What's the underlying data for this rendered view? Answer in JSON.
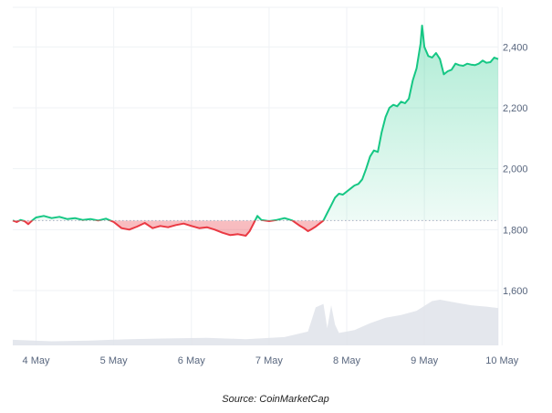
{
  "chart_data": {
    "type": "area",
    "baseline": 1830,
    "ylim": [
      1420,
      2530
    ],
    "x_ticks": [
      "4 May",
      "5 May",
      "6 May",
      "7 May",
      "8 May",
      "9 May",
      "10 May"
    ],
    "y_ticks": [
      1600,
      1800,
      2000,
      2200,
      2400
    ],
    "y_tick_labels": [
      "1,600",
      "1,800",
      "2,000",
      "2,200",
      "2,400"
    ],
    "grid": true,
    "series": [
      {
        "points": [
          [
            0,
            1830
          ],
          [
            0.05,
            1825
          ],
          [
            0.1,
            1832
          ],
          [
            0.15,
            1828
          ],
          [
            0.2,
            1818
          ],
          [
            0.25,
            1830
          ],
          [
            0.3,
            1840
          ],
          [
            0.4,
            1845
          ],
          [
            0.5,
            1838
          ],
          [
            0.6,
            1842
          ],
          [
            0.7,
            1835
          ],
          [
            0.8,
            1838
          ],
          [
            0.9,
            1832
          ],
          [
            1.0,
            1835
          ],
          [
            1.1,
            1830
          ],
          [
            1.2,
            1836
          ],
          [
            1.3,
            1825
          ],
          [
            1.4,
            1805
          ],
          [
            1.5,
            1800
          ],
          [
            1.6,
            1810
          ],
          [
            1.7,
            1822
          ],
          [
            1.8,
            1805
          ],
          [
            1.9,
            1812
          ],
          [
            2.0,
            1808
          ],
          [
            2.1,
            1815
          ],
          [
            2.2,
            1820
          ],
          [
            2.3,
            1812
          ],
          [
            2.4,
            1805
          ],
          [
            2.5,
            1808
          ],
          [
            2.6,
            1800
          ],
          [
            2.7,
            1790
          ],
          [
            2.8,
            1782
          ],
          [
            2.9,
            1785
          ],
          [
            3.0,
            1780
          ],
          [
            3.05,
            1795
          ],
          [
            3.1,
            1820
          ],
          [
            3.15,
            1845
          ],
          [
            3.2,
            1832
          ],
          [
            3.3,
            1828
          ],
          [
            3.4,
            1832
          ],
          [
            3.5,
            1838
          ],
          [
            3.6,
            1830
          ],
          [
            3.7,
            1812
          ],
          [
            3.75,
            1805
          ],
          [
            3.8,
            1795
          ],
          [
            3.85,
            1802
          ],
          [
            3.9,
            1810
          ],
          [
            3.95,
            1820
          ],
          [
            4.0,
            1830
          ],
          [
            4.05,
            1855
          ],
          [
            4.1,
            1880
          ],
          [
            4.15,
            1905
          ],
          [
            4.2,
            1918
          ],
          [
            4.25,
            1915
          ],
          [
            4.3,
            1925
          ],
          [
            4.35,
            1935
          ],
          [
            4.4,
            1945
          ],
          [
            4.45,
            1950
          ],
          [
            4.5,
            1965
          ],
          [
            4.55,
            2000
          ],
          [
            4.6,
            2040
          ],
          [
            4.65,
            2060
          ],
          [
            4.7,
            2055
          ],
          [
            4.75,
            2120
          ],
          [
            4.8,
            2170
          ],
          [
            4.85,
            2200
          ],
          [
            4.9,
            2210
          ],
          [
            4.95,
            2205
          ],
          [
            5.0,
            2220
          ],
          [
            5.05,
            2215
          ],
          [
            5.1,
            2230
          ],
          [
            5.15,
            2290
          ],
          [
            5.2,
            2330
          ],
          [
            5.25,
            2410
          ],
          [
            5.27,
            2470
          ],
          [
            5.3,
            2400
          ],
          [
            5.35,
            2370
          ],
          [
            5.4,
            2365
          ],
          [
            5.45,
            2380
          ],
          [
            5.5,
            2360
          ],
          [
            5.55,
            2310
          ],
          [
            5.6,
            2320
          ],
          [
            5.65,
            2325
          ],
          [
            5.7,
            2345
          ],
          [
            5.75,
            2340
          ],
          [
            5.8,
            2338
          ],
          [
            5.85,
            2345
          ],
          [
            5.9,
            2342
          ],
          [
            5.95,
            2340
          ],
          [
            6.0,
            2345
          ],
          [
            6.05,
            2355
          ],
          [
            6.1,
            2348
          ],
          [
            6.15,
            2350
          ],
          [
            6.2,
            2365
          ],
          [
            6.25,
            2360
          ]
        ]
      }
    ],
    "volume": [
      [
        0,
        8
      ],
      [
        0.5,
        6
      ],
      [
        1.0,
        7
      ],
      [
        1.5,
        9
      ],
      [
        2.0,
        10
      ],
      [
        2.5,
        11
      ],
      [
        3.0,
        9
      ],
      [
        3.5,
        12
      ],
      [
        3.8,
        20
      ],
      [
        3.9,
        55
      ],
      [
        4.0,
        60
      ],
      [
        4.05,
        25
      ],
      [
        4.1,
        58
      ],
      [
        4.15,
        30
      ],
      [
        4.2,
        18
      ],
      [
        4.4,
        22
      ],
      [
        4.6,
        32
      ],
      [
        4.8,
        40
      ],
      [
        5.0,
        44
      ],
      [
        5.2,
        50
      ],
      [
        5.4,
        64
      ],
      [
        5.5,
        66
      ],
      [
        5.7,
        62
      ],
      [
        5.9,
        58
      ],
      [
        6.1,
        56
      ],
      [
        6.25,
        54
      ]
    ]
  },
  "source_text": "Source: CoinMarketCap",
  "colors": {
    "up": "#16c784",
    "down": "#ea3943",
    "grid": "#eff2f5",
    "baseline": "#a6b0c3",
    "volume": "#dfe3ea",
    "text": "#58667e"
  }
}
